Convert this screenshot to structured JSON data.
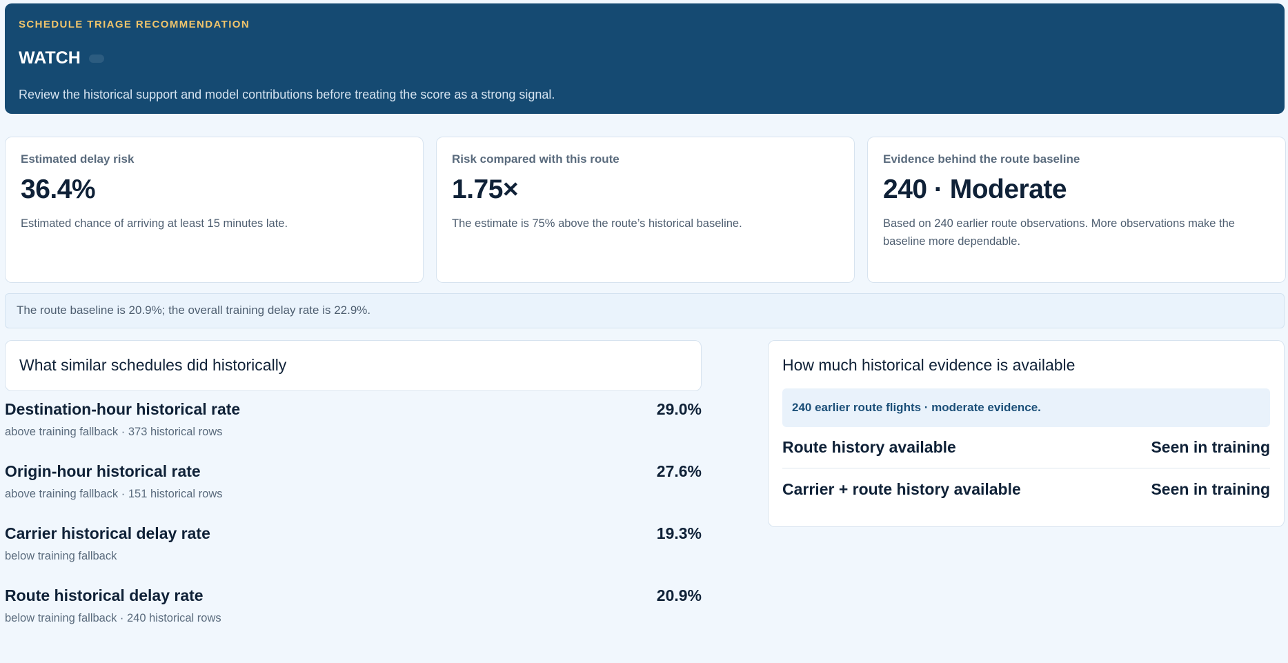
{
  "banner": {
    "eyebrow": "SCHEDULE TRIAGE RECOMMENDATION",
    "status": "WATCH",
    "description": "Review the historical support and model contributions before treating the score as a strong signal."
  },
  "cards": [
    {
      "label": "Estimated delay risk",
      "value": "36.4%",
      "note": "Estimated chance of arriving at least 15 minutes late."
    },
    {
      "label": "Risk compared with this route",
      "value": "1.75×",
      "note": "The estimate is 75% above the route’s historical baseline."
    },
    {
      "label": "Evidence behind the route baseline",
      "value": "240 · Moderate",
      "note": "Based on 240 earlier route observations. More observations make the baseline more dependable."
    }
  ],
  "baseline_note": "The route baseline is 20.9%; the overall training delay rate is 22.9%.",
  "history": {
    "title": "What similar schedules did historically",
    "items": [
      {
        "label": "Destination-hour historical rate",
        "value": "29.0%",
        "sub": "above training fallback · 373 historical rows"
      },
      {
        "label": "Origin-hour historical rate",
        "value": "27.6%",
        "sub": "above training fallback · 151 historical rows"
      },
      {
        "label": "Carrier historical delay rate",
        "value": "19.3%",
        "sub": "below training fallback"
      },
      {
        "label": "Route historical delay rate",
        "value": "20.9%",
        "sub": "below training fallback · 240 historical rows"
      }
    ]
  },
  "evidence": {
    "title": "How much historical evidence is available",
    "summary": "240 earlier route flights · moderate evidence.",
    "rows": [
      {
        "label": "Route history available",
        "value": "Seen in training"
      },
      {
        "label": "Carrier + route history available",
        "value": "Seen in training"
      }
    ]
  }
}
